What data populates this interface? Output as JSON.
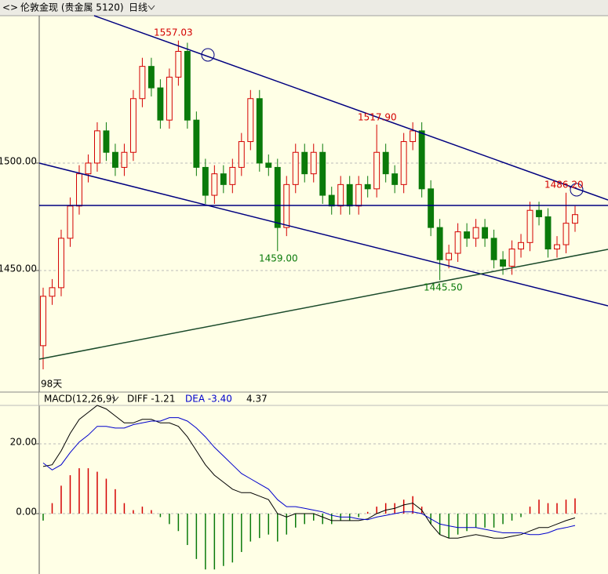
{
  "header": {
    "instrument": "伦敦金现 (贵金属 5120)",
    "period": "日线"
  },
  "chart_data": [
    {
      "type": "candlestick",
      "period_label": "98天",
      "ylim": [
        1394.5,
        1568.6
      ],
      "yticks": [
        {
          "value": 1450,
          "label": "1450.00"
        },
        {
          "value": 1500,
          "label": "1500.00"
        }
      ],
      "grid": true,
      "up_color": "#d40000",
      "down_color": "#0a7a0a",
      "annotations": [
        "1557.03",
        "1517.90",
        "1486.20",
        "1459.00",
        "1445.50"
      ],
      "open": [
        1415,
        1438,
        1442,
        1465,
        1480,
        1495,
        1500,
        1515,
        1505,
        1498,
        1505,
        1530,
        1545,
        1535,
        1520,
        1540,
        1552,
        1520,
        1498,
        1485,
        1495,
        1490,
        1498,
        1510,
        1530,
        1500,
        1498,
        1470,
        1490,
        1505,
        1495,
        1505,
        1485,
        1480,
        1490,
        1480,
        1490,
        1488,
        1505,
        1495,
        1490,
        1510,
        1515,
        1488,
        1470,
        1455,
        1458,
        1468,
        1465,
        1470,
        1465,
        1455,
        1452,
        1460,
        1463,
        1478,
        1475,
        1460,
        1462,
        1472
      ],
      "high": [
        1442,
        1446,
        1469,
        1484,
        1499,
        1504,
        1519,
        1519,
        1509,
        1509,
        1534,
        1549,
        1549,
        1539,
        1544,
        1557.03,
        1556,
        1524,
        1502,
        1499,
        1499,
        1502,
        1514,
        1534,
        1534,
        1504,
        1502,
        1494,
        1509,
        1509,
        1509,
        1509,
        1489,
        1494,
        1494,
        1494,
        1494,
        1517.9,
        1509,
        1499,
        1514,
        1519,
        1519,
        1492,
        1474,
        1462,
        1472,
        1472,
        1474,
        1474,
        1469,
        1459,
        1464,
        1467,
        1482,
        1482,
        1479,
        1466,
        1486.2,
        1480
      ],
      "low": [
        1404,
        1434,
        1438,
        1461,
        1476,
        1491,
        1496,
        1501,
        1494,
        1494,
        1501,
        1526,
        1531,
        1516,
        1516,
        1536,
        1516,
        1494,
        1481,
        1481,
        1486,
        1486,
        1494,
        1506,
        1496,
        1494,
        1459,
        1466,
        1486,
        1491,
        1491,
        1481,
        1476,
        1476,
        1476,
        1476,
        1484,
        1484,
        1491,
        1486,
        1486,
        1506,
        1484,
        1466,
        1445.5,
        1451,
        1454,
        1461,
        1461,
        1461,
        1451,
        1448,
        1448,
        1456,
        1459,
        1471,
        1456,
        1456,
        1458,
        1468
      ],
      "close": [
        1438,
        1442,
        1465,
        1480,
        1495,
        1500,
        1515,
        1505,
        1498,
        1505,
        1530,
        1545,
        1535,
        1520,
        1540,
        1552,
        1520,
        1498,
        1485,
        1495,
        1490,
        1498,
        1510,
        1530,
        1500,
        1498,
        1470,
        1490,
        1505,
        1495,
        1505,
        1485,
        1480,
        1490,
        1480,
        1490,
        1488,
        1505,
        1495,
        1490,
        1510,
        1515,
        1488,
        1470,
        1455,
        1458,
        1468,
        1465,
        1470,
        1465,
        1455,
        1452,
        1460,
        1463,
        1478,
        1475,
        1460,
        1462,
        1472,
        1476
      ]
    },
    {
      "type": "macd",
      "title": "MACD(12,26,9)",
      "legend": [
        "DIFF -1.21",
        "DEA -3.40",
        "4.37"
      ],
      "ylim": [
        -17.3,
        31
      ],
      "yticks": [
        {
          "value": 0,
          "label": "0.00"
        },
        {
          "value": 20,
          "label": "20.00"
        }
      ],
      "grid": true,
      "series": [
        {
          "name": "MACD",
          "color": "#d40000",
          "down_color": "#0a7a0a",
          "values": [
            -2,
            3,
            8,
            11,
            13,
            13,
            12,
            10,
            7,
            3,
            1,
            2,
            1,
            -1,
            -3,
            -5,
            -9,
            -13,
            -16,
            -16,
            -15,
            -14,
            -11,
            -8,
            -7,
            -6,
            -8,
            -6,
            -4,
            -3,
            -2,
            -3,
            -3,
            -2,
            -2,
            -1,
            0.5,
            2,
            3,
            3,
            4,
            5,
            2,
            -3,
            -6,
            -7,
            -6,
            -5,
            -4,
            -4,
            -4,
            -3,
            -2,
            -1,
            2,
            4,
            3,
            3,
            4,
            4.37
          ]
        },
        {
          "name": "DIFF",
          "color": "#000000",
          "values": [
            13.5,
            14,
            18,
            23,
            27,
            29,
            31,
            30,
            28,
            26,
            26,
            27,
            27,
            26,
            26,
            25,
            22,
            18,
            14,
            11,
            9,
            7,
            6,
            6,
            5,
            4,
            0,
            -1,
            0,
            0,
            0,
            -1,
            -2,
            -2,
            -2,
            -2,
            -1.5,
            0,
            1,
            1.5,
            2.5,
            3,
            1,
            -3,
            -6,
            -7,
            -7,
            -6.5,
            -6,
            -6.5,
            -7,
            -7,
            -6.5,
            -6,
            -5,
            -4,
            -4,
            -3,
            -2,
            -1.21
          ]
        },
        {
          "name": "DEA",
          "color": "#0000cc",
          "values": [
            14.5,
            12.5,
            14,
            17.5,
            20.5,
            22.5,
            25,
            25,
            24.5,
            24.5,
            25.5,
            26,
            26.5,
            26.5,
            27.5,
            27.5,
            26.5,
            24.5,
            22,
            19,
            16.5,
            14,
            11.5,
            10,
            8.5,
            7,
            4,
            2,
            2,
            1.5,
            1,
            0.5,
            -0.5,
            -1,
            -1,
            -1.5,
            -1.75,
            -1,
            -0.5,
            0,
            0.5,
            0.5,
            0,
            -1.5,
            -3,
            -3.5,
            -4,
            -4,
            -4,
            -4.5,
            -5,
            -5.5,
            -5.5,
            -5.5,
            -6,
            -6,
            -5.5,
            -4.5,
            -4,
            -3.4
          ]
        }
      ]
    }
  ]
}
